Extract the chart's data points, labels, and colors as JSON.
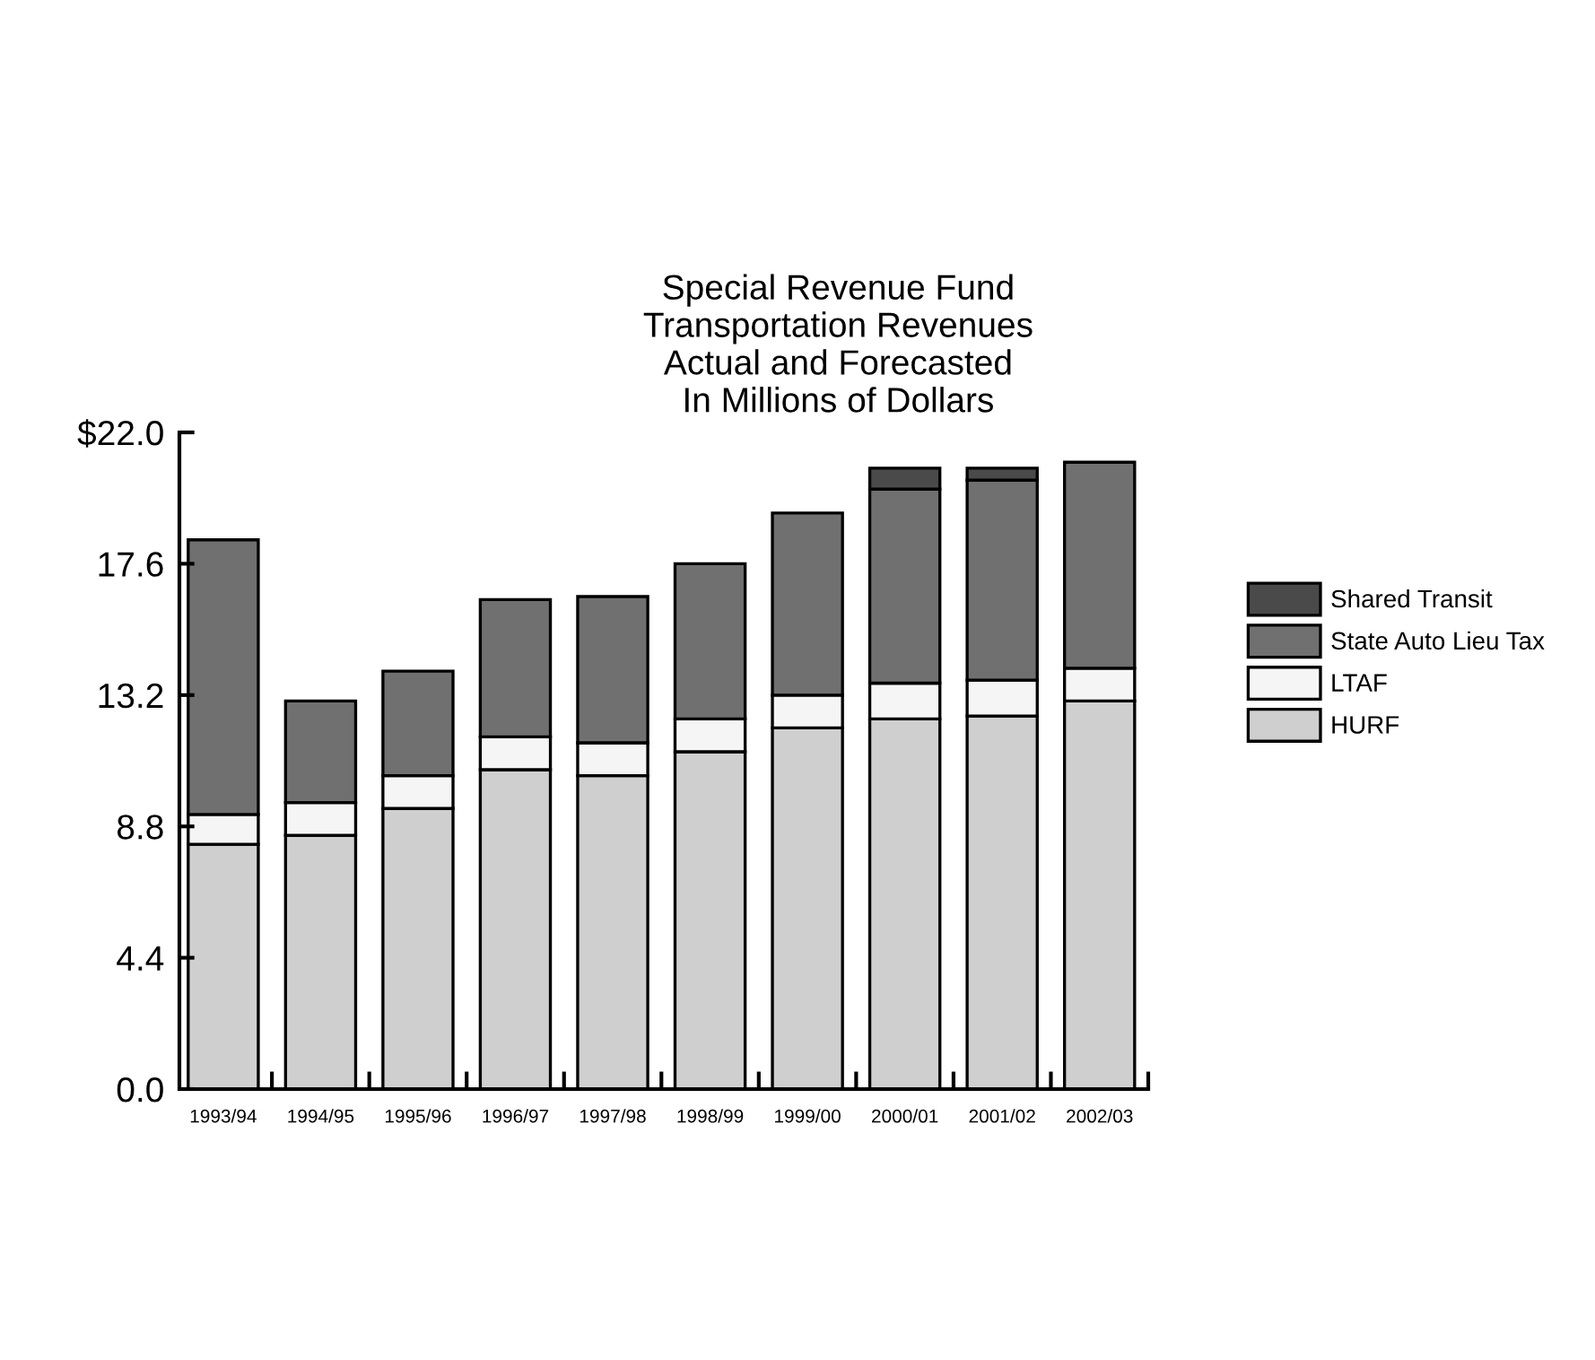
{
  "chart_data": {
    "type": "bar",
    "title": "Special Revenue Fund\nTransportation Revenues\nActual and Forecasted\nIn Millions of Dollars",
    "categories": [
      "1993/94",
      "1994/95",
      "1995/96",
      "1996/97",
      "1997/98",
      "1998/99",
      "1999/00",
      "2000/01",
      "2001/02",
      "2002/03"
    ],
    "stacked": true,
    "series": [
      {
        "name": "HURF",
        "color": "#cfcfcf",
        "values": [
          8.2,
          8.5,
          9.4,
          10.7,
          10.5,
          11.3,
          12.1,
          12.4,
          12.5,
          13.0
        ]
      },
      {
        "name": "LTAF",
        "color": "#f5f5f5",
        "values": [
          1.0,
          1.1,
          1.1,
          1.1,
          1.1,
          1.1,
          1.1,
          1.2,
          1.2,
          1.1
        ]
      },
      {
        "name": "State Auto Lieu Tax",
        "color": "#707070",
        "values": [
          9.2,
          3.4,
          3.5,
          4.6,
          4.9,
          5.2,
          6.1,
          6.5,
          6.7,
          6.9
        ]
      },
      {
        "name": "Shared Transit",
        "color": "#4a4a4a",
        "values": [
          null,
          null,
          null,
          null,
          null,
          null,
          null,
          0.7,
          0.4,
          null
        ]
      }
    ],
    "ylim": [
      0,
      22
    ],
    "yticks": [
      {
        "value": 0,
        "label": "0.0"
      },
      4.4,
      8.8,
      13.2,
      17.6,
      {
        "value": 22,
        "label": "$22.0"
      }
    ],
    "legend": "right"
  }
}
